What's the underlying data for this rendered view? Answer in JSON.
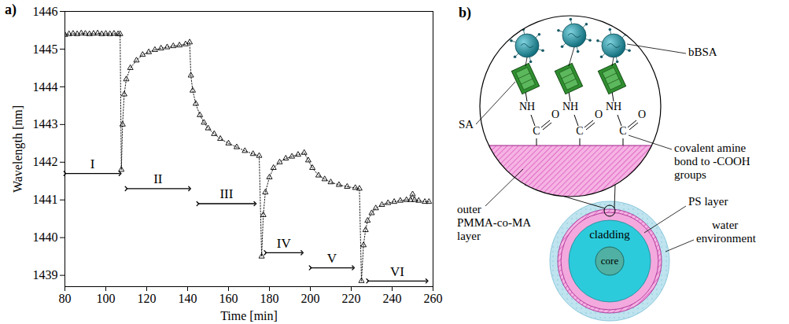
{
  "chart_data": {
    "type": "line",
    "title": "a)",
    "xlabel": "Time [min]",
    "ylabel": "Wavelength [nm]",
    "x": [
      80,
      82,
      84,
      86,
      88,
      90,
      92,
      94,
      96,
      98,
      100,
      102,
      104,
      106,
      107,
      107.6,
      108.2,
      109,
      110,
      112,
      115,
      118,
      121,
      124,
      127,
      130,
      133,
      136,
      139,
      141,
      141.6,
      142.5,
      144,
      146,
      148,
      150,
      153,
      156,
      160,
      164,
      168,
      172,
      175,
      176.2,
      177,
      178,
      180,
      182,
      185,
      188,
      191,
      194,
      197,
      199,
      201,
      204,
      207,
      210,
      214,
      218,
      222,
      224,
      225,
      226,
      227,
      228,
      230,
      232,
      235,
      238,
      241,
      244,
      247,
      249,
      250,
      251,
      253,
      256,
      258
    ],
    "values": [
      1445.38,
      1445.4,
      1445.41,
      1445.4,
      1445.42,
      1445.41,
      1445.4,
      1445.41,
      1445.42,
      1445.4,
      1445.41,
      1445.4,
      1445.41,
      1445.4,
      1445.4,
      1441.8,
      1443.0,
      1443.8,
      1444.2,
      1444.5,
      1444.7,
      1444.85,
      1444.92,
      1444.98,
      1445.02,
      1445.05,
      1445.08,
      1445.1,
      1445.13,
      1445.18,
      1444.3,
      1443.9,
      1443.55,
      1443.25,
      1443.05,
      1442.9,
      1442.75,
      1442.62,
      1442.5,
      1442.4,
      1442.3,
      1442.22,
      1442.17,
      1439.5,
      1440.6,
      1441.2,
      1441.6,
      1441.85,
      1442.0,
      1442.1,
      1442.15,
      1442.2,
      1442.25,
      1442.05,
      1441.85,
      1441.65,
      1441.55,
      1441.47,
      1441.4,
      1441.35,
      1441.32,
      1441.3,
      1438.85,
      1439.8,
      1440.2,
      1440.45,
      1440.65,
      1440.78,
      1440.87,
      1440.92,
      1440.95,
      1440.98,
      1441.0,
      1441.0,
      1441.15,
      1441.0,
      1440.98,
      1440.95,
      1440.95
    ],
    "color": "#000000",
    "marker": "triangle",
    "line_style": "dotted",
    "xlim": [
      80,
      260
    ],
    "xticks": [
      80,
      100,
      120,
      140,
      160,
      180,
      200,
      220,
      240,
      260
    ],
    "ylim": [
      1438.7,
      1446
    ],
    "yticks": [
      1439,
      1440,
      1441,
      1442,
      1443,
      1444,
      1445,
      1446
    ],
    "grid": false,
    "annotations": [
      {
        "text": "I",
        "x": [
          80,
          107
        ],
        "y": 1441.7
      },
      {
        "text": "II",
        "x": [
          110,
          141
        ],
        "y": 1441.3
      },
      {
        "text": "III",
        "x": [
          145,
          173
        ],
        "y": 1440.9
      },
      {
        "text": "IV",
        "x": [
          178,
          196
        ],
        "y": 1439.6
      },
      {
        "text": "V",
        "x": [
          200,
          221
        ],
        "y": 1439.2
      },
      {
        "text": "VI",
        "x": [
          228,
          257
        ],
        "y": 1438.85
      }
    ]
  },
  "diagram": {
    "title": "b)",
    "labels": {
      "bbsa": "bBSA",
      "sa": "SA",
      "bond": [
        "covalent amine",
        "bond to -COOH",
        "groups"
      ],
      "outer_layer": [
        "outer",
        "PMMA-co-MA",
        "layer"
      ],
      "ps_layer": "PS layer",
      "cladding": "cladding",
      "core": "core",
      "water": [
        "water",
        "environment"
      ]
    },
    "chemistry": {
      "nh": "NH",
      "c": "C",
      "o": "O"
    }
  }
}
